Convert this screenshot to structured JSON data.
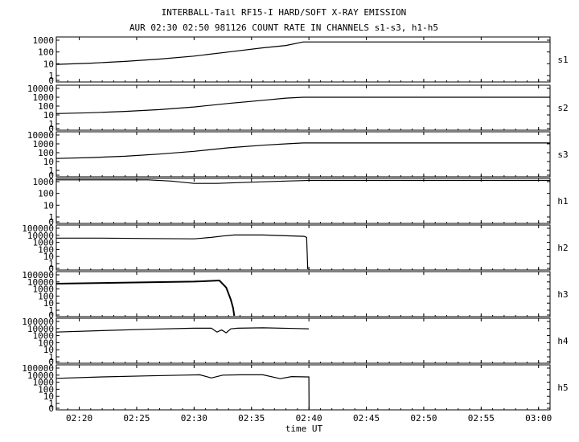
{
  "title": "INTERBALL-Tail RF15-I HARD/SOFT X-RAY EMISSION",
  "subtitle": "AUR 02:30 02:50 981126  COUNT RATE IN CHANNELS s1-s3, h1-h5",
  "xlabel": "time UT",
  "x_ticks": [
    "02:20",
    "02:25",
    "02:30",
    "02:35",
    "02:40",
    "02:45",
    "02:50",
    "02:55",
    "03:00"
  ],
  "x_tick_minutes": [
    20,
    25,
    30,
    35,
    40,
    45,
    50,
    55,
    60
  ],
  "x_range_minutes": [
    18,
    61
  ],
  "chart_data": {
    "type": "line",
    "title": "INTERBALL-Tail RF15-I HARD/SOFT X-RAY EMISSION",
    "subtitle": "AUR 02:30 02:50 981126  COUNT RATE IN CHANNELS s1-s3, h1-h5",
    "xlabel": "time UT",
    "x_unit": "minutes after 02:00 UT",
    "panels": [
      {
        "name": "s1",
        "yscale": "log",
        "ylim_decades": [
          0,
          3
        ],
        "yticks": [
          "1000",
          "100",
          "10",
          "1",
          "0"
        ],
        "series": {
          "x": [
            18,
            21,
            24,
            27,
            30,
            33,
            36,
            38,
            39.5,
            40,
            50,
            61
          ],
          "log10": [
            0.95,
            1.05,
            1.2,
            1.4,
            1.65,
            2.0,
            2.35,
            2.55,
            2.85,
            2.85,
            2.85,
            2.85
          ]
        }
      },
      {
        "name": "s2",
        "yscale": "log",
        "ylim_decades": [
          0,
          4
        ],
        "yticks": [
          "10000",
          "1000",
          "100",
          "10",
          "1",
          "0"
        ],
        "series": {
          "x": [
            18,
            21,
            24,
            27,
            30,
            33,
            36,
            38,
            39.5,
            40,
            50,
            61
          ],
          "log10": [
            1.15,
            1.25,
            1.4,
            1.6,
            1.9,
            2.3,
            2.65,
            2.9,
            3.0,
            3.0,
            3.0,
            3.0
          ]
        }
      },
      {
        "name": "s3",
        "yscale": "log",
        "ylim_decades": [
          0,
          4
        ],
        "yticks": [
          "10000",
          "1000",
          "100",
          "10",
          "1",
          "0"
        ],
        "series": {
          "x": [
            18,
            21,
            24,
            27,
            30,
            33,
            36,
            38,
            39.5,
            40,
            50,
            61
          ],
          "log10": [
            1.35,
            1.45,
            1.6,
            1.85,
            2.15,
            2.55,
            2.85,
            3.0,
            3.1,
            3.1,
            3.1,
            3.1
          ]
        }
      },
      {
        "name": "h1",
        "yscale": "log",
        "ylim_decades": [
          0,
          3
        ],
        "yticks": [
          "1000",
          "100",
          "10",
          "1",
          "0"
        ],
        "series": {
          "x": [
            18,
            23,
            26,
            28,
            30,
            32,
            35,
            38,
            40,
            50,
            61
          ],
          "log10": [
            3.15,
            3.15,
            3.15,
            3.05,
            2.85,
            2.85,
            2.95,
            3.05,
            3.1,
            3.1,
            3.1
          ]
        }
      },
      {
        "name": "h2",
        "yscale": "log",
        "ylim_decades": [
          0,
          5
        ],
        "yticks": [
          "100000",
          "10000",
          "1000",
          "100",
          "10",
          "1",
          "0"
        ],
        "series": {
          "x": [
            18,
            22,
            26,
            30,
            31.5,
            32.5,
            33.5,
            36,
            39.6,
            39.8,
            39.9
          ],
          "log10": [
            3.6,
            3.6,
            3.55,
            3.5,
            3.7,
            3.9,
            4.05,
            4.05,
            3.85,
            3.7,
            -0.2
          ]
        }
      },
      {
        "name": "h3",
        "yscale": "log",
        "ylim_decades": [
          0,
          5
        ],
        "yticks": [
          "100000",
          "10000",
          "1000",
          "100",
          "10",
          "1",
          "0"
        ],
        "series": {
          "x": [
            18,
            22,
            26,
            30,
            31.5,
            32.2,
            32.8,
            33.2,
            33.4,
            33.5
          ],
          "log10": [
            3.75,
            3.85,
            3.95,
            4.05,
            4.15,
            4.2,
            3.2,
            1.5,
            0.3,
            -0.2
          ]
        }
      },
      {
        "name": "h4",
        "yscale": "log",
        "ylim_decades": [
          0,
          5
        ],
        "yticks": [
          "100000",
          "10000",
          "1000",
          "100",
          "10",
          "1",
          "0"
        ],
        "series": {
          "x": [
            18,
            22,
            26,
            30,
            31.5,
            32,
            32.4,
            32.8,
            33.2,
            33.8,
            36,
            39,
            40
          ],
          "log10": [
            3.5,
            3.7,
            3.9,
            4.05,
            4.05,
            3.5,
            3.8,
            3.4,
            3.95,
            4.05,
            4.1,
            4.0,
            3.95
          ]
        }
      },
      {
        "name": "h5",
        "yscale": "log",
        "ylim_decades": [
          0,
          5
        ],
        "yticks": [
          "100000",
          "10000",
          "1000",
          "100",
          "10",
          "1",
          "0"
        ],
        "series": {
          "x": [
            18,
            22,
            26,
            29,
            30.5,
            31.5,
            32.5,
            34,
            36,
            37.5,
            38.5,
            39.8,
            40,
            40.01
          ],
          "log10": [
            3.55,
            3.75,
            3.9,
            4.0,
            4.05,
            3.6,
            4.0,
            4.05,
            4.05,
            3.5,
            3.8,
            3.75,
            3.75,
            -0.2
          ]
        }
      }
    ]
  }
}
